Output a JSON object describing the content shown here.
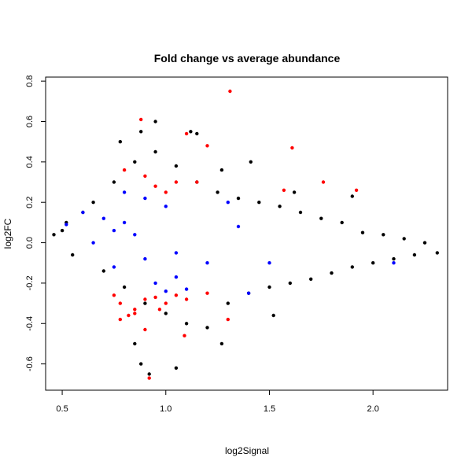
{
  "chart_data": {
    "type": "scatter",
    "title": "Fold change vs average abundance",
    "xlabel": "log2Signal",
    "ylabel": "log2FC",
    "xlim": [
      0.42,
      2.36
    ],
    "ylim": [
      -0.73,
      0.82
    ],
    "x_ticks": [
      0.5,
      1.0,
      1.5,
      2.0
    ],
    "x_tick_labels": [
      "0.5",
      "1.0",
      "1.5",
      "2.0"
    ],
    "y_ticks": [
      -0.6,
      -0.4,
      -0.2,
      0.0,
      0.2,
      0.4,
      0.6,
      0.8
    ],
    "y_tick_labels": [
      "-0.6",
      "-0.4",
      "-0.2",
      "0.0",
      "0.2",
      "0.4",
      "0.6",
      "0.8"
    ],
    "grid": false,
    "legend": "none",
    "colors": {
      "background": "#000000",
      "significant": "#ff0000",
      "highlighted": "#0000ff"
    },
    "series": [
      {
        "color": "#000000",
        "x": [
          0.46,
          0.5,
          0.52,
          0.55,
          0.6,
          0.65,
          0.7,
          0.75,
          0.8,
          0.85,
          0.9,
          0.95,
          1.0,
          1.05,
          1.1,
          1.15,
          1.2,
          1.25,
          1.3,
          1.35,
          1.4,
          1.45,
          1.5,
          1.55,
          1.6,
          1.65,
          1.7,
          1.75,
          1.8,
          1.85,
          1.9,
          1.95,
          2.0,
          2.05,
          2.1,
          2.15,
          2.2,
          2.25,
          2.31,
          0.78,
          0.88,
          0.95,
          1.12,
          1.15,
          1.27,
          1.41,
          1.62,
          1.9,
          0.85,
          0.88,
          0.92,
          1.05,
          1.27,
          1.52
        ],
        "y": [
          0.04,
          0.06,
          0.1,
          -0.06,
          0.15,
          0.2,
          -0.14,
          0.3,
          -0.22,
          0.4,
          -0.3,
          0.45,
          -0.35,
          0.38,
          -0.4,
          0.3,
          -0.42,
          0.25,
          -0.3,
          0.22,
          -0.25,
          0.2,
          -0.22,
          0.18,
          -0.2,
          0.15,
          -0.18,
          0.12,
          -0.15,
          0.1,
          -0.12,
          0.05,
          -0.1,
          0.04,
          -0.08,
          0.02,
          -0.06,
          0.0,
          -0.05,
          0.5,
          0.55,
          0.6,
          0.55,
          0.54,
          0.36,
          0.4,
          0.25,
          0.23,
          -0.5,
          -0.6,
          -0.65,
          -0.62,
          -0.5,
          -0.36
        ]
      },
      {
        "color": "#ff0000",
        "x": [
          1.31,
          0.88,
          1.1,
          1.2,
          1.61,
          1.76,
          1.92,
          1.57,
          0.8,
          0.9,
          0.95,
          1.0,
          1.05,
          1.15,
          0.75,
          0.78,
          0.82,
          0.85,
          0.9,
          0.95,
          1.0,
          1.05,
          1.1,
          1.2,
          0.78,
          0.85,
          0.9,
          1.09,
          1.3,
          0.92,
          0.97
        ],
        "y": [
          0.75,
          0.61,
          0.54,
          0.48,
          0.47,
          0.3,
          0.26,
          0.26,
          0.36,
          0.33,
          0.28,
          0.25,
          0.3,
          0.3,
          -0.26,
          -0.3,
          -0.36,
          -0.33,
          -0.28,
          -0.27,
          -0.3,
          -0.26,
          -0.28,
          -0.25,
          -0.38,
          -0.35,
          -0.43,
          -0.46,
          -0.38,
          -0.67,
          -0.33
        ]
      },
      {
        "color": "#0000ff",
        "x": [
          0.52,
          0.6,
          0.7,
          0.75,
          0.8,
          0.85,
          0.95,
          1.0,
          1.05,
          1.1,
          1.3,
          1.4,
          0.65,
          0.75,
          0.9,
          1.0,
          1.2,
          1.35,
          0.8,
          0.9,
          1.05,
          1.5,
          2.1
        ],
        "y": [
          0.09,
          0.15,
          0.12,
          0.06,
          0.1,
          0.04,
          -0.2,
          -0.24,
          -0.17,
          -0.23,
          0.2,
          -0.25,
          0.0,
          -0.12,
          -0.08,
          0.18,
          -0.1,
          0.08,
          0.25,
          0.22,
          -0.05,
          -0.1,
          -0.1
        ]
      }
    ]
  }
}
